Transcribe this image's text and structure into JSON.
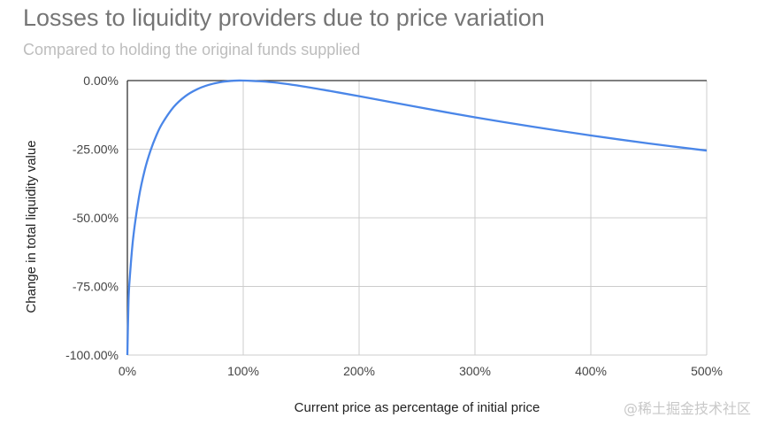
{
  "chart_data": {
    "type": "line",
    "title": "Losses to liquidity providers due to price variation",
    "subtitle": "Compared to holding the original funds supplied",
    "xlabel": "Current price as percentage of initial price",
    "ylabel": "Change in total liquidity value",
    "xlim": [
      0,
      500
    ],
    "ylim": [
      -100,
      0
    ],
    "x_ticks": [
      0,
      100,
      200,
      300,
      400,
      500
    ],
    "x_tick_labels": [
      "0%",
      "100%",
      "200%",
      "300%",
      "400%",
      "500%"
    ],
    "y_ticks": [
      0,
      -25,
      -50,
      -75,
      -100
    ],
    "y_tick_labels": [
      "0.00%",
      "-25.00%",
      "-50.00%",
      "-75.00%",
      "-100.00%"
    ],
    "grid": true,
    "legend": "none",
    "series": [
      {
        "color": "#4a86e8",
        "x": [
          0,
          1,
          2,
          5,
          10,
          15,
          20,
          25,
          30,
          40,
          50,
          60,
          70,
          80,
          90,
          100,
          125,
          150,
          175,
          200,
          250,
          300,
          350,
          400,
          450,
          500
        ],
        "y": [
          -100,
          -80.2,
          -72.3,
          -57.4,
          -42.5,
          -32.6,
          -25.5,
          -20.0,
          -15.7,
          -9.6,
          -5.7,
          -3.2,
          -1.6,
          -0.6,
          -0.1,
          0,
          -0.6,
          -2.0,
          -3.8,
          -5.7,
          -9.6,
          -13.4,
          -16.8,
          -20.0,
          -22.9,
          -25.5
        ]
      }
    ]
  },
  "watermark": "@稀土掘金技术社区"
}
